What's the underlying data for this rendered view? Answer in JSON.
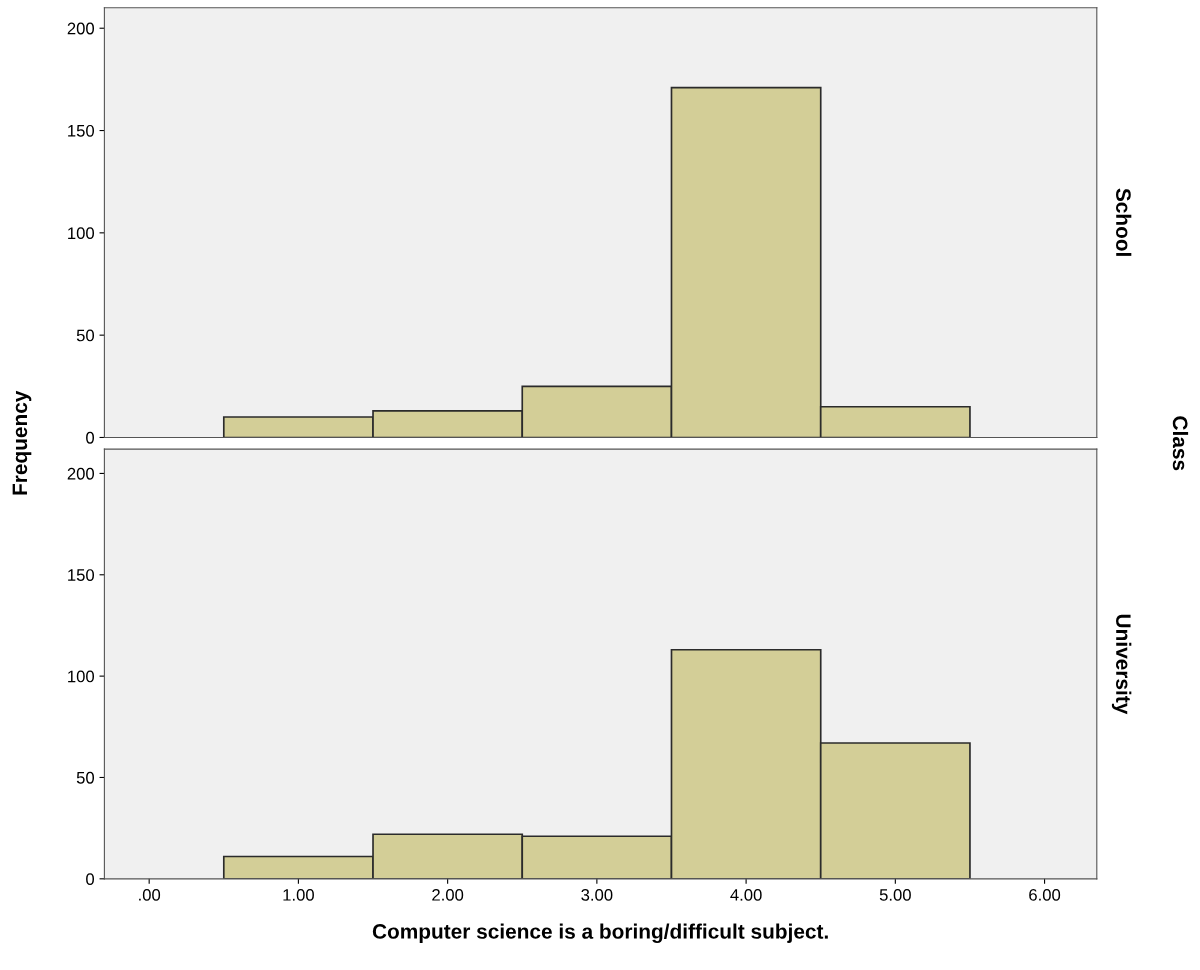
{
  "chart_data": [
    {
      "type": "histogram",
      "bins": [
        0.5,
        1.5,
        2.5,
        3.5,
        4.5,
        5.5
      ],
      "values": [
        10,
        13,
        25,
        171,
        15
      ],
      "color": "#d3ce97",
      "xlim": [
        -0.3,
        6.35
      ],
      "ylim": [
        0,
        210
      ],
      "yticks": [
        0,
        50,
        100,
        150,
        200
      ],
      "tick_labels": "y",
      "ylabel": "Frequency",
      "annotations": [
        "School",
        "Class"
      ],
      "grid": false
    },
    {
      "type": "histogram",
      "bins": [
        0.5,
        1.5,
        2.5,
        3.5,
        4.5,
        5.5
      ],
      "values": [
        11,
        22,
        21,
        113,
        67
      ],
      "color": "#d3ce97",
      "xlim": [
        -0.3,
        6.35
      ],
      "ylim": [
        0,
        212
      ],
      "yticks": [
        0,
        50,
        100,
        150,
        200
      ],
      "xticks": [
        {
          "value": 0,
          "label": ".00"
        },
        {
          "value": 1,
          "label": "1.00"
        },
        {
          "value": 2,
          "label": "2.00"
        },
        {
          "value": 3,
          "label": "3.00"
        },
        {
          "value": 4,
          "label": "4.00"
        },
        {
          "value": 5,
          "label": "5.00"
        },
        {
          "value": 6,
          "label": "6.00"
        }
      ],
      "xlabel": "Computer science is a boring/difficult subject.",
      "annotations": [
        "University"
      ],
      "grid": false
    }
  ]
}
